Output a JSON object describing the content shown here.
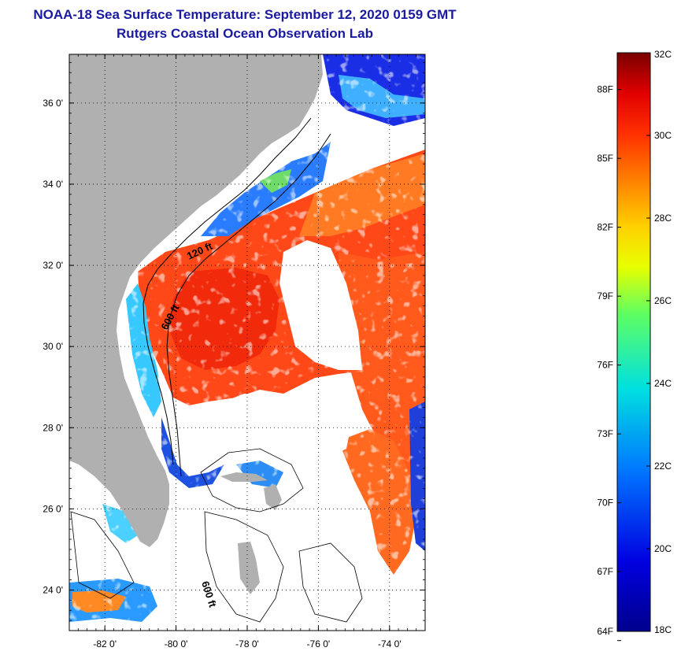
{
  "header": {
    "title": "NOAA-18 Sea Surface Temperature:  September 12, 2020 0159 GMT",
    "subtitle": "Rutgers Coastal Ocean Observation Lab"
  },
  "map": {
    "lon_range": [
      -83,
      -73
    ],
    "lat_range": [
      23,
      37.2
    ],
    "lat_ticks": [
      {
        "value": 36,
        "label": "36 0'"
      },
      {
        "value": 34,
        "label": "34 0'"
      },
      {
        "value": 32,
        "label": "32 0'"
      },
      {
        "value": 30,
        "label": "30 0'"
      },
      {
        "value": 28,
        "label": "28 0'"
      },
      {
        "value": 26,
        "label": "26 0'"
      },
      {
        "value": 24,
        "label": "24 0'"
      }
    ],
    "lon_ticks": [
      {
        "value": -82,
        "label": "-82 0'"
      },
      {
        "value": -80,
        "label": "-80 0'"
      },
      {
        "value": -78,
        "label": "-78 0'"
      },
      {
        "value": -76,
        "label": "-76 0'"
      },
      {
        "value": -74,
        "label": "-74 0'"
      }
    ],
    "contour_labels": [
      "120 ft",
      "600 ft",
      "600 ft"
    ],
    "colors": {
      "land": "#b0b0b0",
      "no_data": "#ffffff",
      "warm_sst": "#ff4a1a"
    }
  },
  "colorbar": {
    "min_c": 18,
    "max_c": 32,
    "celsius_ticks": [
      {
        "value": 32,
        "label": "32C"
      },
      {
        "value": 30,
        "label": "30C"
      },
      {
        "value": 28,
        "label": "28C"
      },
      {
        "value": 26,
        "label": "26C"
      },
      {
        "value": 24,
        "label": "24C"
      },
      {
        "value": 22,
        "label": "22C"
      },
      {
        "value": 20,
        "label": "20C"
      },
      {
        "value": 18,
        "label": "18C"
      }
    ],
    "fahrenheit_ticks": [
      {
        "value": 88,
        "label": "88F"
      },
      {
        "value": 85,
        "label": "85F"
      },
      {
        "value": 82,
        "label": "82F"
      },
      {
        "value": 79,
        "label": "79F"
      },
      {
        "value": 76,
        "label": "76F"
      },
      {
        "value": 73,
        "label": "73F"
      },
      {
        "value": 70,
        "label": "70F"
      },
      {
        "value": 67,
        "label": "67F"
      },
      {
        "value": 64,
        "label": "64F"
      }
    ]
  }
}
